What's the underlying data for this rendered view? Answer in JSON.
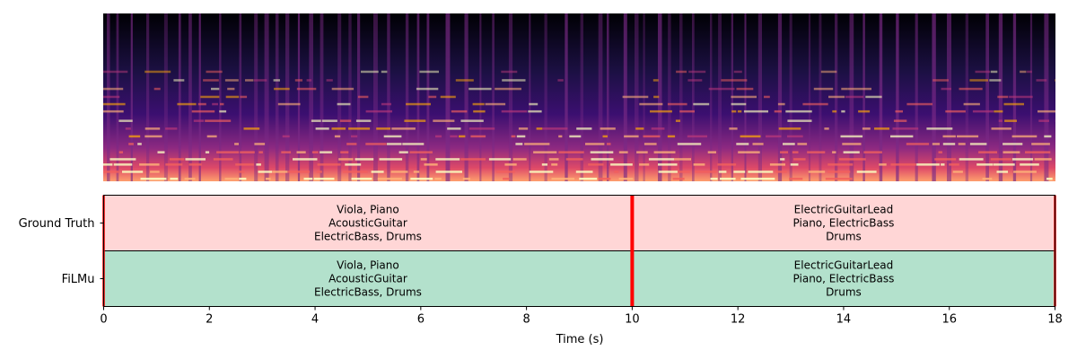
{
  "chart_data": [
    {
      "type": "heatmap",
      "kind": "spectrogram",
      "colormap": "magma",
      "x": [
        0,
        18
      ],
      "segments_boundary": 10
    },
    {
      "type": "bar",
      "orientation": "horizontal",
      "xlabel": "Time (s)",
      "xlim": [
        0,
        18
      ],
      "xticks": [
        0,
        2,
        4,
        6,
        8,
        10,
        12,
        14,
        16,
        18
      ],
      "rows": [
        "Ground Truth",
        "FiLMu"
      ],
      "row_colors": [
        "#ffd6d6",
        "#b3e1cc"
      ],
      "boundary_color": "#ff0000",
      "boundaries": [
        0,
        10,
        18
      ],
      "series": [
        {
          "name": "Ground Truth",
          "segments": [
            {
              "start": 0,
              "end": 10,
              "lines": [
                "Viola, Piano",
                "AcousticGuitar",
                "ElectricBass, Drums"
              ]
            },
            {
              "start": 10,
              "end": 18,
              "lines": [
                "ElectricGuitarLead",
                "Piano, ElectricBass",
                "Drums"
              ]
            }
          ]
        },
        {
          "name": "FiLMu",
          "segments": [
            {
              "start": 0,
              "end": 10,
              "lines": [
                "Viola, Piano",
                "AcousticGuitar",
                "ElectricBass, Drums"
              ]
            },
            {
              "start": 10,
              "end": 18,
              "lines": [
                "ElectricGuitarLead",
                "Piano, ElectricBass",
                "Drums"
              ]
            }
          ]
        }
      ]
    }
  ]
}
